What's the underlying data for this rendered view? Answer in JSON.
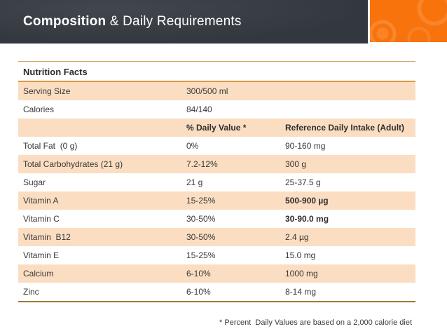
{
  "header": {
    "title_bold": "Composition",
    "title_rest": " & Daily Requirements"
  },
  "table": {
    "title": "Nutrition Facts",
    "rows": [
      {
        "c1": "Serving Size",
        "c2": "300/500 ml",
        "c3": ""
      },
      {
        "c1": "Calories",
        "c2": "84/140",
        "c3": ""
      },
      {
        "c1": "",
        "c2": "% Daily Value *",
        "c3": "Reference Daily Intake (Adult)",
        "header": true
      },
      {
        "c1": "Total Fat  (0 g)",
        "c2": "0%",
        "c3": "90-160 mg"
      },
      {
        "c1": "Total Carbohydrates (21 g)",
        "c2": "7.2-12%",
        "c3": "300 g"
      },
      {
        "c1": "Sugar",
        "c2": "21 g",
        "c3": "25-37.5 g"
      },
      {
        "c1": "Vitamin A",
        "c2": "15-25%",
        "c3": "500-900 µg",
        "bold": [
          "c3"
        ]
      },
      {
        "c1": "Vitamin C",
        "c2": "30-50%",
        "c3": "30-90.0 mg",
        "bold": [
          "c3"
        ]
      },
      {
        "c1": "Vitamin  B12",
        "c2": "30-50%",
        "c3": "2.4 µg"
      },
      {
        "c1": "Vitamin E",
        "c2": "15-25%",
        "c3": "15.0 mg"
      },
      {
        "c1": "Calcium",
        "c2": "6-10%",
        "c3": "1000 mg"
      },
      {
        "c1": "Zinc",
        "c2": "6-10%",
        "c3": "8-14 mg"
      }
    ],
    "footnote": "* Percent  Daily Values are based on a 2,000 calorie diet"
  },
  "colors": {
    "accent_orange": "#f8730c",
    "header_bar": "#373d44",
    "row_peach": "#fbdec2",
    "rule_top": "#d5a15f",
    "rule_mid": "#d89a47",
    "rule_bottom": "#9c7b33",
    "title_text": "#ffffff"
  }
}
